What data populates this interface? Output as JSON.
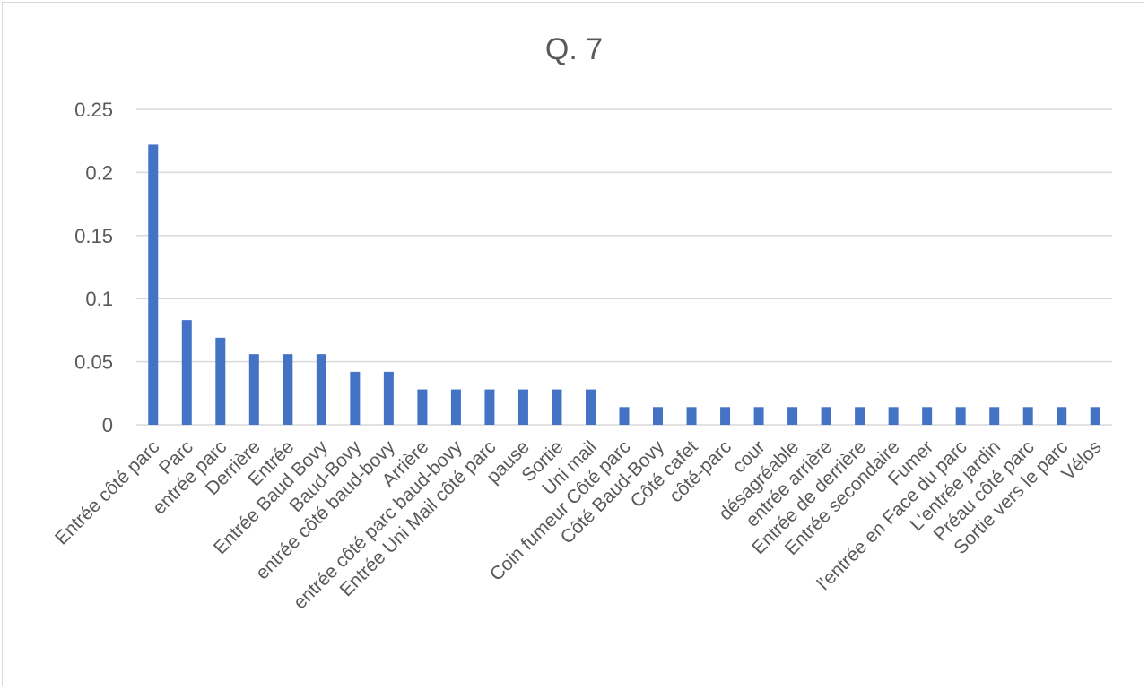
{
  "chart_data": {
    "type": "bar",
    "title": "Q. 7",
    "xlabel": "",
    "ylabel": "",
    "ylim": [
      0,
      0.25
    ],
    "yticks": [
      "0",
      "0.05",
      "0.1",
      "0.15",
      "0.2",
      "0.25"
    ],
    "grid": true,
    "legend": "none",
    "bar_color": "#4472C4",
    "categories": [
      "Entrée côté parc",
      "Parc",
      "entrée parc",
      "Derrière",
      "Entrée",
      "Entrée Baud Bovy",
      "Baud-Bovy",
      "entrée côté baud-bovy",
      "Arrière",
      "entrée côté parc baud-bovy",
      "Entrée Uni Mail côté parc",
      "pause",
      "Sortie",
      "Uni mail",
      "Coin fumeur Côté parc",
      "Côté Baud-Bovy",
      "Côté cafet",
      "côté-parc",
      "cour",
      "désagréable",
      "entrée arrière",
      "Entrée de derrière",
      "Entrée secondaire",
      "Fumer",
      "l'entrée en Face du parc",
      "L'entrée jardin",
      "Préau côté parc",
      "Sortie vers le parc",
      "Vélos"
    ],
    "values": [
      0.222,
      0.083,
      0.069,
      0.056,
      0.056,
      0.056,
      0.042,
      0.042,
      0.028,
      0.028,
      0.028,
      0.028,
      0.028,
      0.028,
      0.014,
      0.014,
      0.014,
      0.014,
      0.014,
      0.014,
      0.014,
      0.014,
      0.014,
      0.014,
      0.014,
      0.014,
      0.014,
      0.014,
      0.014
    ]
  }
}
